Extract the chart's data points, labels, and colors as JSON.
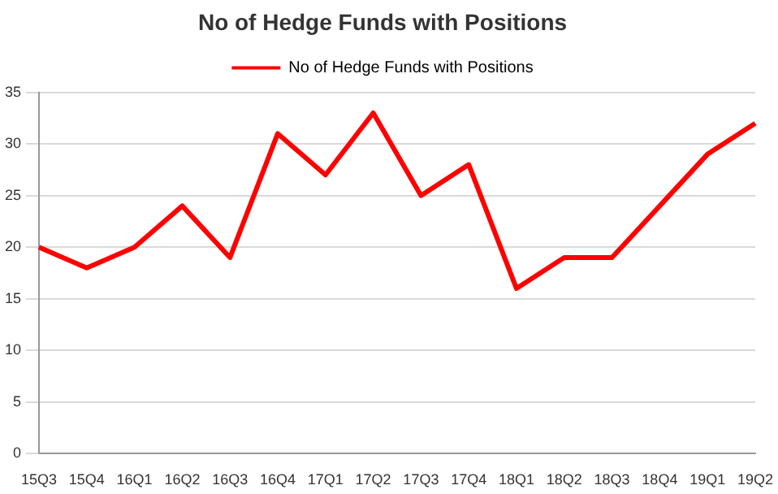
{
  "chart_data": {
    "type": "line",
    "title": "No of Hedge Funds with Positions",
    "categories": [
      "15Q3",
      "15Q4",
      "16Q1",
      "16Q2",
      "16Q3",
      "16Q4",
      "17Q1",
      "17Q2",
      "17Q3",
      "17Q4",
      "18Q1",
      "18Q2",
      "18Q3",
      "18Q4",
      "19Q1",
      "19Q2"
    ],
    "series": [
      {
        "name": "No of Hedge Funds with Positions",
        "color": "#ff0000",
        "values": [
          20,
          18,
          20,
          24,
          19,
          31,
          27,
          33,
          25,
          28,
          16,
          19,
          19,
          24,
          29,
          32
        ]
      }
    ],
    "ylim": [
      0,
      35
    ],
    "yticks": [
      0,
      5,
      10,
      15,
      20,
      25,
      30,
      35
    ],
    "grid": "y",
    "legend": "top",
    "marker": "none",
    "line_style": "solid"
  }
}
